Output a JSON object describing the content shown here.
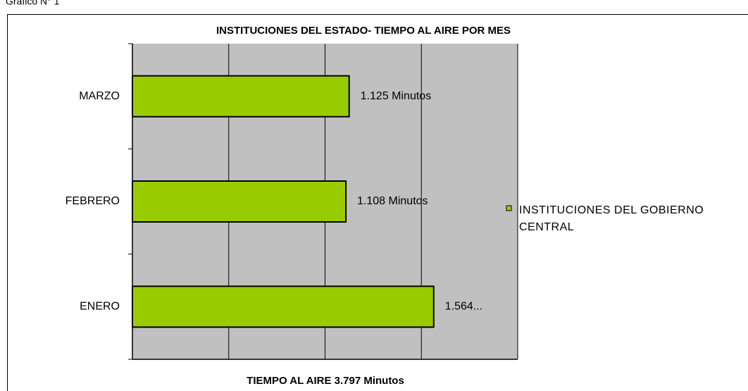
{
  "header": "Gráfico N° 1",
  "chart_data": {
    "type": "barh",
    "title": "INSTITUCIONES DEL ESTADO- TIEMPO AL AIRE POR MES",
    "x_label": "TIEMPO AL AIRE 3.797 Minutos",
    "categories": [
      "ENERO",
      "FEBRERO",
      "MARZO"
    ],
    "series": [
      {
        "name": "INSTITUCIONES DEL GOBIERNO CENTRAL",
        "color": "#99cc00",
        "values": [
          1564,
          1108,
          1125
        ],
        "value_labels": [
          "1.564...",
          "1.108 Minutos",
          "1.125 Minutos"
        ]
      }
    ],
    "xlim": [
      0,
      2000
    ],
    "xticks": [
      0,
      500,
      1000,
      1500,
      2000
    ],
    "grid": true,
    "legend": "right"
  }
}
